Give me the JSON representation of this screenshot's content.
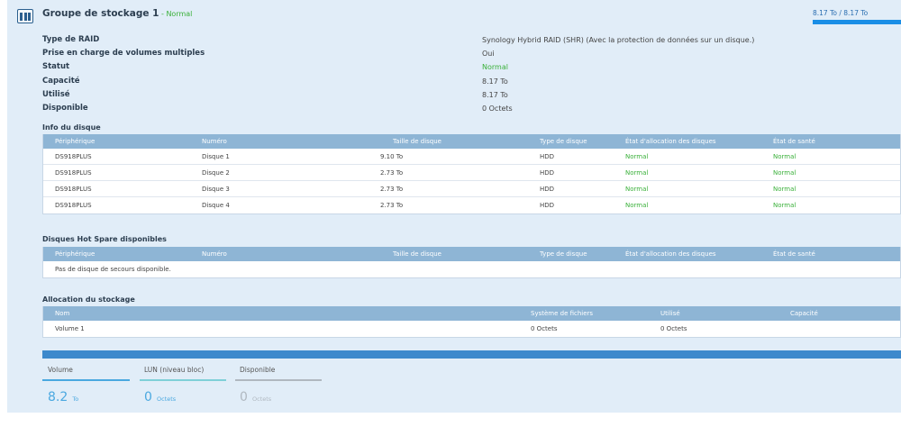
{
  "header": {
    "title": "Groupe de stockage 1",
    "dash": " - ",
    "status": "Normal",
    "usage_text": "8.17 To / 8.17 To",
    "usage_fraction": 1.0
  },
  "properties": [
    {
      "label": "Type de RAID",
      "value": "Synology Hybrid RAID (SHR) (Avec la protection de données sur un disque.)"
    },
    {
      "label": "Prise en charge de volumes multiples",
      "value": "Oui"
    },
    {
      "label": "Statut",
      "value": "Normal"
    },
    {
      "label": "Capacité",
      "value": "8.17 To"
    },
    {
      "label": "Utilisé",
      "value": "8.17 To"
    },
    {
      "label": "Disponible",
      "value": "0 Octets"
    }
  ],
  "disk_info": {
    "title": "Info du disque",
    "columns": [
      "Périphérique",
      "Numéro",
      "Taille de disque",
      "Type de disque",
      "État d'allocation des disques",
      "État de santé"
    ],
    "rows": [
      [
        "DS918PLUS",
        "Disque 1",
        "9.10 To",
        "HDD",
        "Normal",
        "Normal"
      ],
      [
        "DS918PLUS",
        "Disque 2",
        "2.73 To",
        "HDD",
        "Normal",
        "Normal"
      ],
      [
        "DS918PLUS",
        "Disque 3",
        "2.73 To",
        "HDD",
        "Normal",
        "Normal"
      ],
      [
        "DS918PLUS",
        "Disque 4",
        "2.73 To",
        "HDD",
        "Normal",
        "Normal"
      ]
    ]
  },
  "hot_spare": {
    "title": "Disques Hot Spare disponibles",
    "columns": [
      "Périphérique",
      "Numéro",
      "Taille de disque",
      "Type de disque",
      "État d'allocation des disques",
      "État de santé"
    ],
    "empty_text": "Pas de disque de secours disponible."
  },
  "allocation": {
    "title": "Allocation du stockage",
    "columns": [
      "Nom",
      "Système de fichiers",
      "Utilisé",
      "Capacité"
    ],
    "rows": [
      [
        "Volume 1",
        "0 Octets",
        "0 Octets",
        ""
      ]
    ]
  },
  "legend": [
    {
      "label": "Volume",
      "value": "8.2",
      "unit": "To",
      "color": "#4aa8e0"
    },
    {
      "label": "LUN (niveau bloc)",
      "value": "0",
      "unit": "Octets",
      "color": "#7fd0d8"
    },
    {
      "label": "Disponible",
      "value": "0",
      "unit": "Octets",
      "color": "#b0b8c0"
    }
  ],
  "colors": {
    "accent": "#3d89cc",
    "header_row": "#8eb5d5",
    "normal": "#3ab03a",
    "panel": "#e1edf8"
  }
}
